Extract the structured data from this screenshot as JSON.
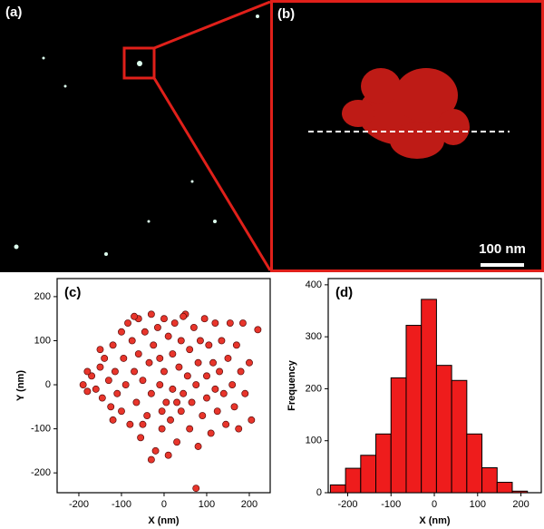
{
  "labels": [
    "(a)",
    "(b)"
  ],
  "scale_bar": "100 nm",
  "chart_data": [
    {
      "type": "scatter",
      "label": "(c)",
      "x_label": "X (nm)",
      "y_label": "Y (nm)",
      "color": "#e8352b",
      "xlim": [
        -251,
        249
      ],
      "ylim": [
        -245,
        241
      ],
      "xticks": [
        -200,
        -100,
        0,
        100,
        200
      ],
      "yticks": [
        -200,
        -100,
        0,
        100,
        200
      ],
      "x": [
        -190,
        -180,
        -170,
        -160,
        -150,
        -145,
        -140,
        -130,
        -125,
        -120,
        -115,
        -110,
        -100,
        -100,
        -95,
        -90,
        -85,
        -80,
        -75,
        -70,
        -65,
        -60,
        -60,
        -55,
        -50,
        -45,
        -40,
        -35,
        -30,
        -30,
        -25,
        -20,
        -15,
        -10,
        -10,
        -5,
        0,
        0,
        5,
        10,
        15,
        20,
        20,
        25,
        30,
        35,
        40,
        40,
        45,
        50,
        55,
        60,
        60,
        65,
        70,
        75,
        80,
        80,
        85,
        90,
        95,
        100,
        100,
        105,
        110,
        115,
        120,
        120,
        125,
        130,
        135,
        140,
        145,
        150,
        155,
        160,
        165,
        170,
        175,
        180,
        185,
        190,
        200,
        205,
        220,
        75,
        -30,
        -120,
        -150,
        10,
        -50,
        -70,
        45,
        -180,
        30,
        -5
      ],
      "values": [
        0,
        -15,
        20,
        -10,
        40,
        -30,
        60,
        10,
        -50,
        90,
        30,
        -20,
        120,
        -60,
        60,
        0,
        140,
        -90,
        100,
        30,
        -40,
        150,
        70,
        -120,
        10,
        120,
        -70,
        50,
        160,
        -20,
        90,
        -150,
        130,
        0,
        60,
        -100,
        150,
        30,
        -40,
        110,
        -80,
        70,
        -10,
        140,
        -130,
        40,
        100,
        -60,
        -20,
        160,
        20,
        -100,
        80,
        -40,
        130,
        0,
        -140,
        50,
        100,
        -70,
        150,
        20,
        -30,
        90,
        -110,
        50,
        140,
        -10,
        -60,
        30,
        100,
        -20,
        -90,
        60,
        140,
        0,
        -50,
        90,
        -100,
        30,
        140,
        -20,
        50,
        -80,
        125,
        -235,
        -170,
        -80,
        80,
        -160,
        -90,
        155,
        155,
        30,
        -40,
        -60
      ]
    },
    {
      "type": "histogram",
      "label": "(d)",
      "x_label": "X (nm)",
      "y_label": "Frequency",
      "color": "#ee1c1c",
      "xlim": [
        -245,
        247
      ],
      "ylim": [
        0,
        412
      ],
      "xticks": [
        -200,
        -100,
        0,
        100,
        200
      ],
      "yticks": [
        0,
        100,
        200,
        300,
        400
      ],
      "bins": [
        -240,
        -205,
        -170,
        -135,
        -100,
        -65,
        -30,
        5,
        40,
        75,
        110,
        145,
        180,
        215
      ],
      "values": [
        15,
        47,
        72,
        113,
        221,
        322,
        372,
        245,
        216,
        113,
        48,
        20,
        3
      ]
    }
  ]
}
